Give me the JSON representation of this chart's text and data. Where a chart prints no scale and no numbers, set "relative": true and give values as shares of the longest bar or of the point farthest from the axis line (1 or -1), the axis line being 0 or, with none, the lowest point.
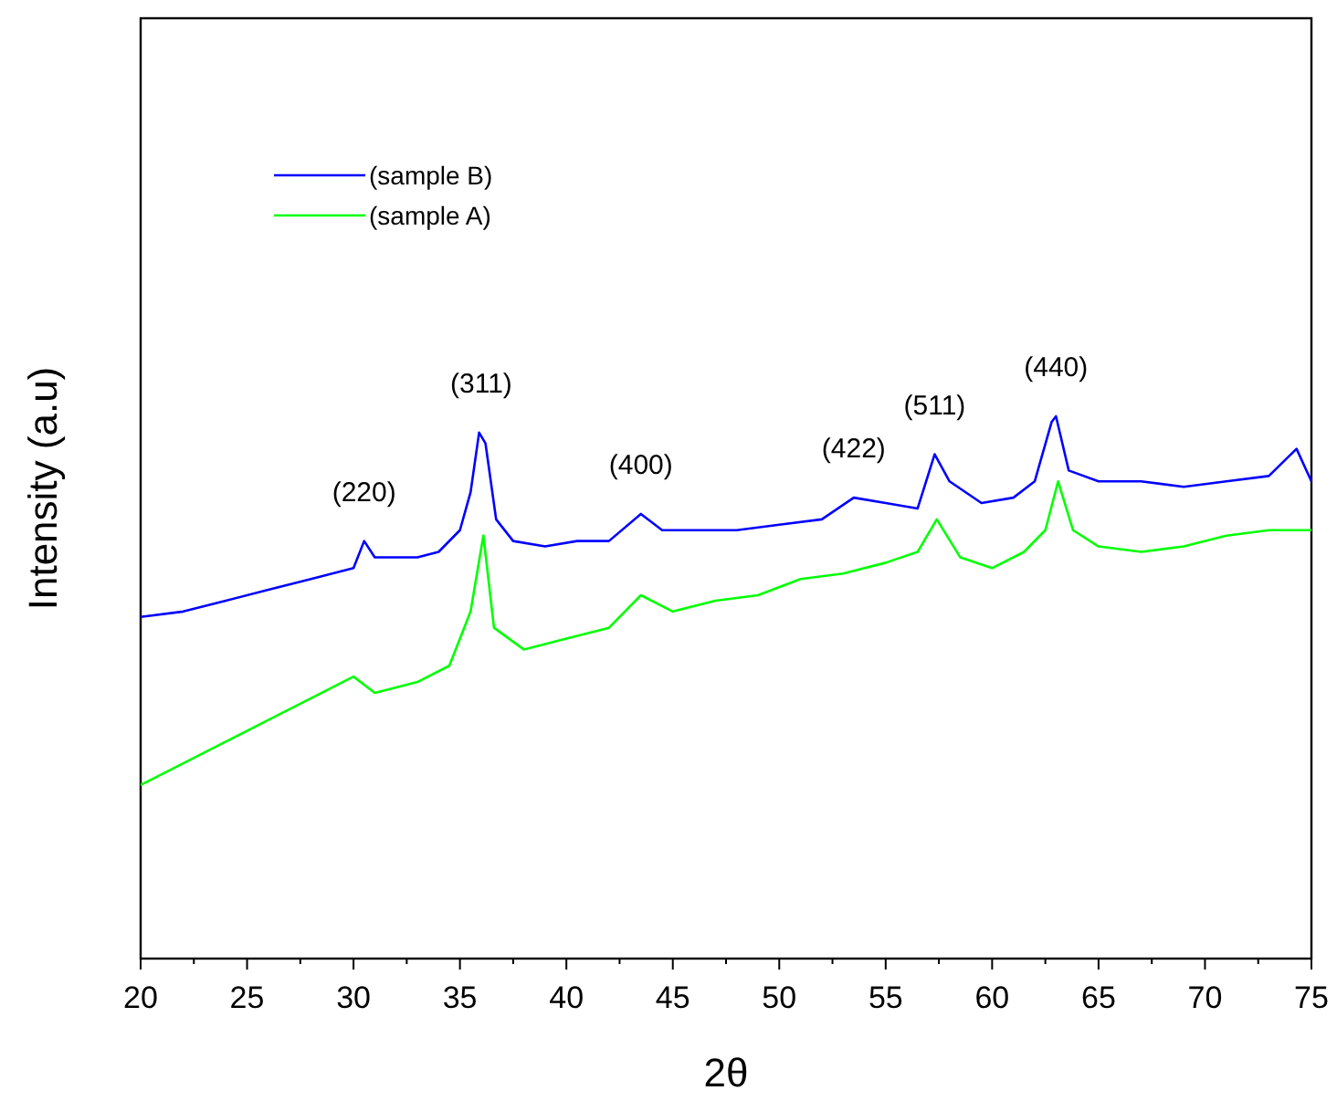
{
  "chart_data": {
    "type": "line",
    "relative": true,
    "xlabel": "2θ",
    "ylabel": "Intensity (a.u)",
    "xlim": [
      20,
      75
    ],
    "xticks": [
      20,
      {
        "value": 22.5,
        "label": null
      },
      25,
      {
        "value": 27.5,
        "label": null
      },
      30,
      {
        "value": 32.5,
        "label": null
      },
      35,
      {
        "value": 37.5,
        "label": null
      },
      40,
      {
        "value": 42.5,
        "label": null
      },
      45,
      {
        "value": 47.5,
        "label": null
      },
      50,
      {
        "value": 52.5,
        "label": null
      },
      55,
      {
        "value": 57.5,
        "label": null
      },
      60,
      {
        "value": 62.5,
        "label": null
      },
      65,
      {
        "value": 67.5,
        "label": null
      },
      70,
      {
        "value": 72.5,
        "label": null
      },
      75
    ],
    "legend": "top left",
    "grid": false,
    "marker": "none",
    "line_style": "solid",
    "series": [
      {
        "name": "(sample B)",
        "color": "#0000ff",
        "x": [
          20,
          22,
          24,
          26,
          28,
          30,
          30.5,
          31,
          33,
          34,
          35,
          35.5,
          35.9,
          36.2,
          36.7,
          37.5,
          39,
          40.5,
          42,
          43.5,
          44.5,
          46,
          48,
          50,
          52,
          53.5,
          55,
          56.5,
          57.3,
          58,
          59.5,
          61,
          62,
          62.8,
          63,
          63.6,
          65,
          67,
          69,
          71,
          73,
          74.3,
          75
        ],
        "values": [
          0.63,
          0.64,
          0.66,
          0.68,
          0.7,
          0.72,
          0.77,
          0.74,
          0.74,
          0.75,
          0.79,
          0.86,
          0.97,
          0.95,
          0.81,
          0.77,
          0.76,
          0.77,
          0.77,
          0.82,
          0.79,
          0.79,
          0.79,
          0.8,
          0.81,
          0.85,
          0.84,
          0.83,
          0.93,
          0.88,
          0.84,
          0.85,
          0.88,
          0.99,
          1,
          0.9,
          0.88,
          0.88,
          0.87,
          0.88,
          0.89,
          0.94,
          0.88
        ]
      },
      {
        "name": "(sample A)",
        "color": "#00ff00",
        "x": [
          20,
          22,
          24,
          26,
          28,
          30,
          31,
          33,
          34.5,
          35.5,
          36.1,
          36.6,
          38,
          40,
          42,
          43.5,
          45,
          47,
          49,
          51,
          53,
          55,
          56.5,
          57.4,
          58.5,
          60,
          61.5,
          62.5,
          63.1,
          63.8,
          65,
          67,
          69,
          71,
          73,
          75
        ],
        "values": [
          0.32,
          0.36,
          0.4,
          0.44,
          0.48,
          0.52,
          0.49,
          0.51,
          0.54,
          0.64,
          0.78,
          0.61,
          0.57,
          0.59,
          0.61,
          0.67,
          0.64,
          0.66,
          0.67,
          0.7,
          0.71,
          0.73,
          0.75,
          0.81,
          0.74,
          0.72,
          0.75,
          0.79,
          0.88,
          0.79,
          0.76,
          0.75,
          0.76,
          0.78,
          0.79,
          0.79
        ]
      }
    ],
    "annotations": [
      {
        "text": "(220)",
        "x": 30.5,
        "y": 0.77
      },
      {
        "text": "(311)",
        "x": 36,
        "y": 0.97
      },
      {
        "text": "(400)",
        "x": 43.5,
        "y": 0.82
      },
      {
        "text": "(422)",
        "x": 53.5,
        "y": 0.85
      },
      {
        "text": "(511)",
        "x": 57.3,
        "y": 0.93
      },
      {
        "text": "(440)",
        "x": 63,
        "y": 1
      }
    ]
  }
}
